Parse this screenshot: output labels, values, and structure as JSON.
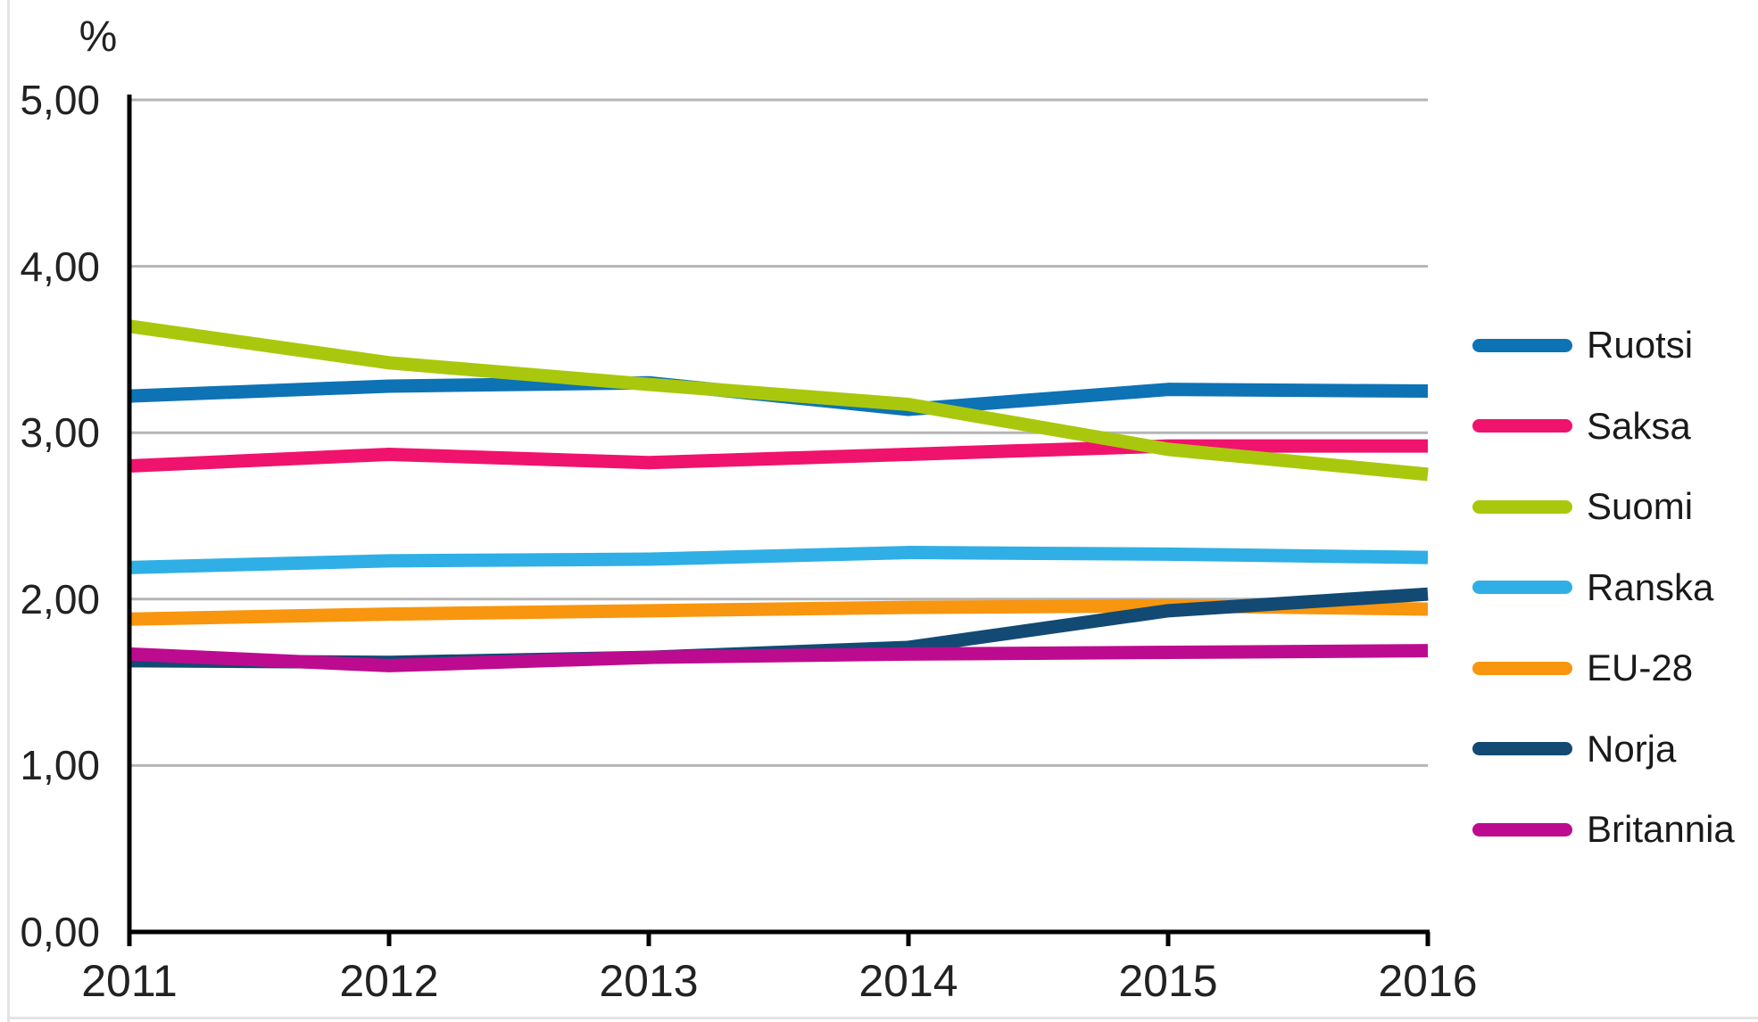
{
  "chart_data": {
    "type": "line",
    "title": "",
    "xlabel": "",
    "ylabel": "%",
    "x": [
      2011,
      2012,
      2013,
      2014,
      2015,
      2016
    ],
    "ylim": [
      0,
      5
    ],
    "ytick_values": [
      0,
      1,
      2,
      3,
      4,
      5
    ],
    "ytick_labels": [
      "0,00",
      "1,00",
      "2,00",
      "3,00",
      "4,00",
      "5,00"
    ],
    "xtick_labels": [
      "2011",
      "2012",
      "2013",
      "2014",
      "2015",
      "2016"
    ],
    "grid": "horizontal",
    "gridline_color": "#b5b5b5",
    "axis_color": "#000000",
    "legend_position": "right",
    "series": [
      {
        "name": "Ruotsi",
        "color": "#0d73b5",
        "values": [
          3.22,
          3.28,
          3.3,
          3.14,
          3.26,
          3.25
        ]
      },
      {
        "name": "Saksa",
        "color": "#ef136d",
        "values": [
          2.8,
          2.87,
          2.82,
          2.87,
          2.92,
          2.92
        ]
      },
      {
        "name": "Suomi",
        "color": "#a9c80d",
        "values": [
          3.64,
          3.42,
          3.29,
          3.17,
          2.9,
          2.75
        ]
      },
      {
        "name": "Ranska",
        "color": "#2fafe5",
        "values": [
          2.19,
          2.23,
          2.24,
          2.28,
          2.27,
          2.25
        ]
      },
      {
        "name": "EU-28",
        "color": "#f8960f",
        "values": [
          1.88,
          1.91,
          1.93,
          1.95,
          1.96,
          1.94
        ]
      },
      {
        "name": "Norja",
        "color": "#124a73",
        "values": [
          1.63,
          1.62,
          1.65,
          1.71,
          1.93,
          2.03
        ]
      },
      {
        "name": "Britannia",
        "color": "#bd0b90",
        "values": [
          1.67,
          1.6,
          1.65,
          1.67,
          1.68,
          1.69
        ]
      }
    ]
  }
}
